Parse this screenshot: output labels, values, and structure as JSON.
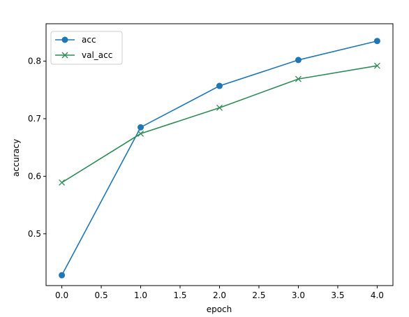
{
  "chart_data": {
    "type": "line",
    "xlabel": "epoch",
    "ylabel": "accuracy",
    "xlim": [
      -0.2,
      4.2
    ],
    "ylim": [
      0.41,
      0.865
    ],
    "xticks": [
      0.0,
      0.5,
      1.0,
      1.5,
      2.0,
      2.5,
      3.0,
      3.5,
      4.0
    ],
    "xtick_labels": [
      "0.0",
      "0.5",
      "1.0",
      "1.5",
      "2.0",
      "2.5",
      "3.0",
      "3.5",
      "4.0"
    ],
    "yticks": [
      0.5,
      0.6,
      0.7,
      0.8
    ],
    "ytick_labels": [
      "0.5",
      "0.6",
      "0.7",
      "0.8"
    ],
    "grid": false,
    "legend_position": "top-left",
    "x": [
      0,
      1,
      2,
      3,
      4
    ],
    "series": [
      {
        "name": "acc",
        "values": [
          0.428,
          0.685,
          0.757,
          0.802,
          0.835
        ],
        "color": "#1f77b4",
        "marker": "circle"
      },
      {
        "name": "val_acc",
        "values": [
          0.589,
          0.674,
          0.719,
          0.769,
          0.792
        ],
        "color": "#2e8b57",
        "marker": "x"
      }
    ]
  }
}
